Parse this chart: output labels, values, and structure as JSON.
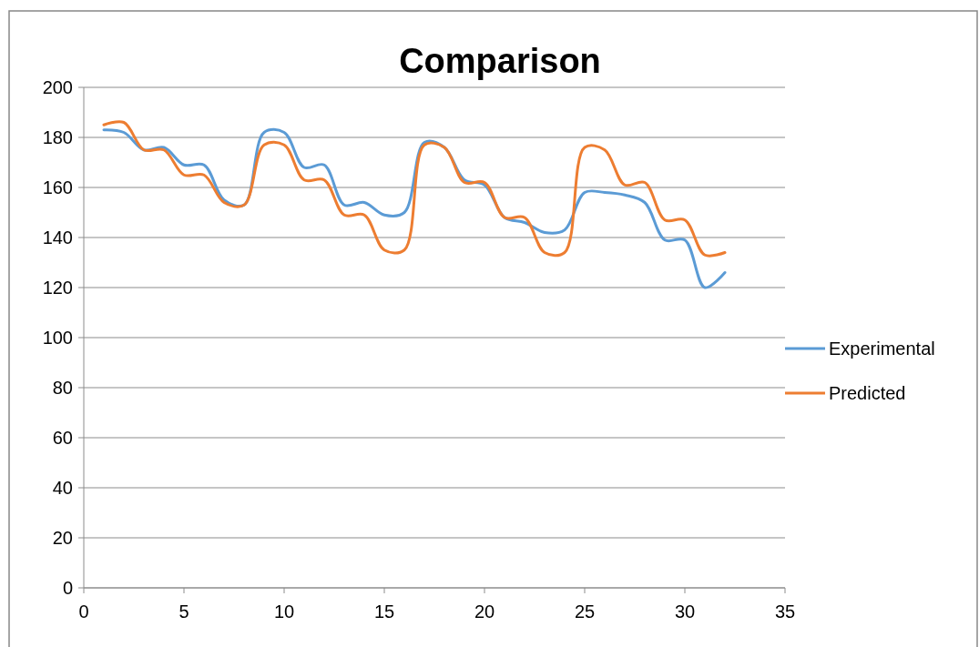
{
  "chart_data": {
    "type": "line",
    "title": "Comparison",
    "x": [
      1,
      2,
      3,
      4,
      5,
      6,
      7,
      8,
      9,
      10,
      11,
      12,
      13,
      14,
      15,
      16,
      17,
      18,
      19,
      20,
      21,
      22,
      23,
      24,
      25,
      26,
      27,
      28,
      29,
      30,
      31,
      32
    ],
    "series": [
      {
        "name": "Experimental",
        "color": "#5b9bd5",
        "values": [
          183,
          182,
          175,
          176,
          169,
          169,
          155,
          153,
          182,
          182,
          168,
          169,
          153,
          154,
          149,
          150,
          178,
          176,
          163,
          161,
          148,
          146,
          142,
          143,
          158,
          158,
          157,
          154,
          139,
          139,
          120,
          126
        ]
      },
      {
        "name": "Predicted",
        "color": "#ed7d31",
        "values": [
          185,
          186,
          175,
          175,
          165,
          165,
          154,
          153,
          177,
          177,
          163,
          163,
          149,
          149,
          135,
          135,
          177,
          176,
          162,
          162,
          148,
          148,
          134,
          134,
          176,
          175,
          161,
          162,
          147,
          147,
          133,
          134
        ]
      }
    ],
    "xlim": [
      0,
      35
    ],
    "xticks": [
      0,
      5,
      10,
      15,
      20,
      25,
      30,
      35
    ],
    "ylim": [
      0,
      200
    ],
    "yticks": [
      0,
      20,
      40,
      60,
      80,
      100,
      120,
      140,
      160,
      180,
      200
    ],
    "grid": "y",
    "legend": "right",
    "marker": "none",
    "line_style": "solid"
  }
}
